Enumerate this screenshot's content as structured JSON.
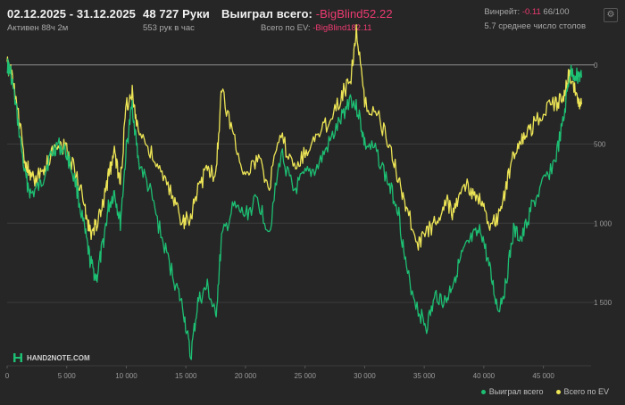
{
  "header": {
    "date_range": "02.12.2025 - 31.12.2025",
    "active": "Активен 88ч 2м",
    "hands": "48 727 Руки",
    "hands_per_hour": "553 рук в час",
    "won_label": "Выиграл всего:",
    "won_value": "-BigBlind52.22",
    "ev_label": "Всего по EV:",
    "ev_value": "-BigBlind182.11",
    "winrate_label": "Винрейт:",
    "winrate_value": "-0.11",
    "winrate_count": "66/100",
    "tables_text": "5.7 среднее число столов",
    "settings_icon": "gear-icon"
  },
  "logo": {
    "text": "HAND2NOTE.COM",
    "icon": "hand2note-logo-icon"
  },
  "colors": {
    "background": "#262626",
    "won": "#1dbf73",
    "ev": "#ede556",
    "grid": "#3c3c3c",
    "zero_line": "#8c8c8c",
    "negative": "#ef3b72"
  },
  "chart_data": {
    "type": "line",
    "title": "",
    "xlabel": "",
    "ylabel": "",
    "xlim": [
      0,
      49000
    ],
    "ylim": [
      1900,
      -100
    ],
    "y_inverted": true,
    "grid": true,
    "legend_position": "bottom-right",
    "x_ticks": [
      0,
      5000,
      10000,
      15000,
      20000,
      25000,
      30000,
      35000,
      40000,
      45000
    ],
    "x_tick_labels": [
      "0",
      "5 000",
      "10 000",
      "15 000",
      "20 000",
      "25 000",
      "30 000",
      "35 000",
      "40 000",
      "45 000"
    ],
    "y_ticks": [
      0,
      500,
      1000,
      1500
    ],
    "y_tick_labels": [
      "0",
      "500",
      "1 000",
      "1 500"
    ],
    "series": [
      {
        "name": "Выиграл всего",
        "color": "#1dbf73",
        "x": [
          0,
          300,
          800,
          1500,
          2000,
          2800,
          3500,
          4200,
          5000,
          5800,
          6500,
          7000,
          7500,
          8000,
          8500,
          9000,
          9500,
          10000,
          10500,
          11000,
          12000,
          13000,
          14000,
          14800,
          15400,
          16000,
          16800,
          17500,
          18000,
          19000,
          20000,
          21000,
          22000,
          23000,
          24000,
          25000,
          26000,
          27000,
          28000,
          28800,
          29500,
          30000,
          31000,
          32000,
          32800,
          33500,
          34500,
          35200,
          36000,
          36800,
          37500,
          38200,
          39000,
          39800,
          40500,
          41200,
          41800,
          42500,
          43200,
          44000,
          45000,
          46000,
          46700,
          47200,
          47800,
          48200
        ],
        "values": [
          0,
          50,
          300,
          700,
          820,
          760,
          600,
          500,
          560,
          760,
          1050,
          1250,
          1350,
          1150,
          900,
          800,
          1000,
          530,
          250,
          600,
          800,
          1100,
          1350,
          1550,
          1850,
          1500,
          1400,
          1600,
          1100,
          900,
          950,
          850,
          1050,
          550,
          800,
          700,
          650,
          500,
          350,
          200,
          300,
          500,
          550,
          750,
          900,
          1300,
          1550,
          1650,
          1450,
          1500,
          1350,
          1200,
          1100,
          1050,
          1300,
          1550,
          1400,
          1050,
          1100,
          900,
          750,
          600,
          350,
          50,
          60,
          80
        ]
      },
      {
        "name": "Всего по EV",
        "color": "#ede556",
        "x": [
          0,
          300,
          800,
          1500,
          2000,
          2800,
          3500,
          4200,
          5000,
          5800,
          6500,
          7000,
          7500,
          8000,
          8500,
          9000,
          9500,
          10000,
          10500,
          11000,
          12000,
          13000,
          14000,
          14800,
          15400,
          16000,
          16800,
          17500,
          18000,
          19000,
          20000,
          21000,
          22000,
          23000,
          24000,
          25000,
          26000,
          27000,
          28000,
          28800,
          29300,
          30000,
          31000,
          32000,
          32800,
          33500,
          34500,
          35200,
          36000,
          36800,
          37500,
          38200,
          39000,
          39800,
          40500,
          41200,
          41800,
          42500,
          43200,
          44000,
          45000,
          46000,
          46700,
          47200,
          47800,
          48200
        ],
        "values": [
          0,
          40,
          250,
          600,
          720,
          700,
          600,
          480,
          540,
          680,
          900,
          1080,
          1000,
          900,
          700,
          550,
          750,
          250,
          180,
          400,
          550,
          700,
          850,
          1000,
          950,
          800,
          650,
          700,
          150,
          450,
          700,
          600,
          750,
          450,
          650,
          550,
          450,
          350,
          200,
          100,
          -230,
          250,
          300,
          500,
          700,
          900,
          1150,
          1050,
          1000,
          850,
          950,
          750,
          800,
          850,
          1050,
          950,
          800,
          550,
          450,
          400,
          300,
          250,
          200,
          50,
          200,
          250
        ]
      }
    ]
  },
  "legend": {
    "won": "Выиграл всего",
    "ev": "Всего по EV"
  }
}
